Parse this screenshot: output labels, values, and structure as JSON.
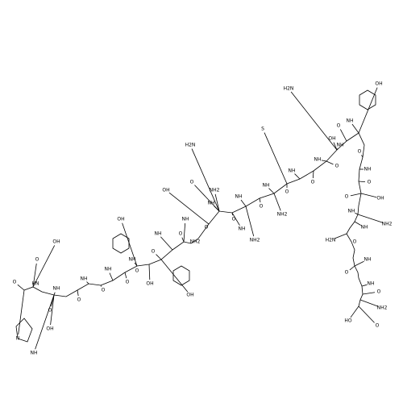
{
  "atom_labels": [
    "O",
    "HN",
    "N",
    "NH",
    "O",
    "NH",
    "OH",
    "O",
    "OH",
    "O",
    "NH",
    "O",
    "NH",
    "O",
    "NH",
    "OH",
    "O",
    "NH",
    "OH",
    "O",
    "O",
    "NH",
    "O",
    "NH2",
    "OH",
    "O",
    "NH",
    "OH",
    "O",
    "NH",
    "NH2",
    "O",
    "NH",
    "H2N",
    "NH",
    "NH2",
    "O",
    "NH",
    "NH2",
    "S",
    "O",
    "NH",
    "O",
    "NH",
    "H2N",
    "O",
    "NH",
    "OH",
    "OH",
    "O",
    "NH",
    "O",
    "OH",
    "O",
    "NH",
    "NH",
    "O",
    "NH2",
    "H2N",
    "NH",
    "O",
    "NH",
    "O",
    "HO",
    "NH2",
    "O"
  ]
}
